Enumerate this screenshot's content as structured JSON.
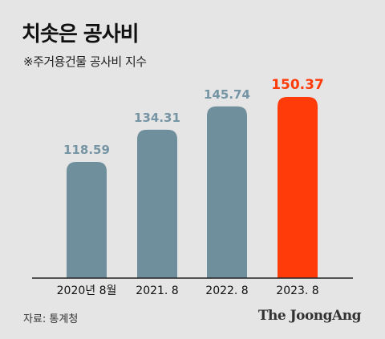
{
  "title": "치솟은 공사비",
  "subtitle": "※주거용건물 공사비 지수",
  "source": "자료: 통계청",
  "logo": "The JoongAng",
  "colors": {
    "background": "#e5e5e5",
    "bar": "#6f8f9c",
    "highlight": "#ff3b0a",
    "value_label": "#7594a4"
  },
  "chart_data": {
    "type": "bar",
    "categories": [
      "2020년 8월",
      "2021. 8",
      "2022. 8",
      "2023. 8"
    ],
    "values": [
      118.59,
      134.31,
      145.74,
      150.37
    ],
    "value_labels": [
      "118.59",
      "134.31",
      "145.74",
      "150.37"
    ],
    "highlight_index": 3,
    "title": "",
    "xlabel": "",
    "ylabel": "",
    "grid": false
  }
}
